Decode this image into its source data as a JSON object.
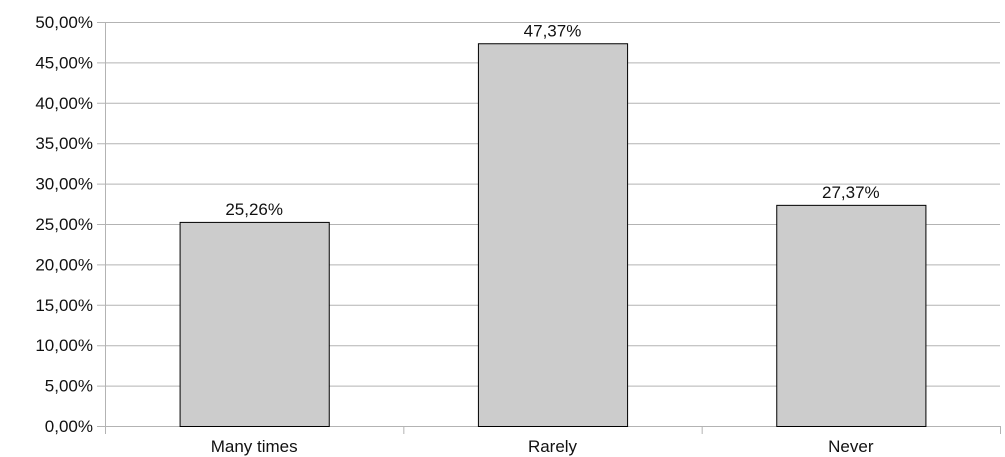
{
  "chart_data": {
    "type": "bar",
    "categories": [
      "Many times",
      "Rarely",
      "Never"
    ],
    "values": [
      25.26,
      47.37,
      27.37
    ],
    "data_labels": [
      "25,26%",
      "47,37%",
      "27,37%"
    ],
    "y_ticks": [
      0,
      5,
      10,
      15,
      20,
      25,
      30,
      35,
      40,
      45,
      50
    ],
    "y_tick_labels": [
      "0,00%",
      "5,00%",
      "10,00%",
      "15,00%",
      "20,00%",
      "25,00%",
      "30,00%",
      "35,00%",
      "40,00%",
      "45,00%",
      "50,00%"
    ],
    "ylim": [
      0,
      50
    ],
    "grid": true,
    "legend": false,
    "bar_color": "#cccccc",
    "bar_edge_color": "#000000",
    "grid_color": "#b3b3b3"
  }
}
